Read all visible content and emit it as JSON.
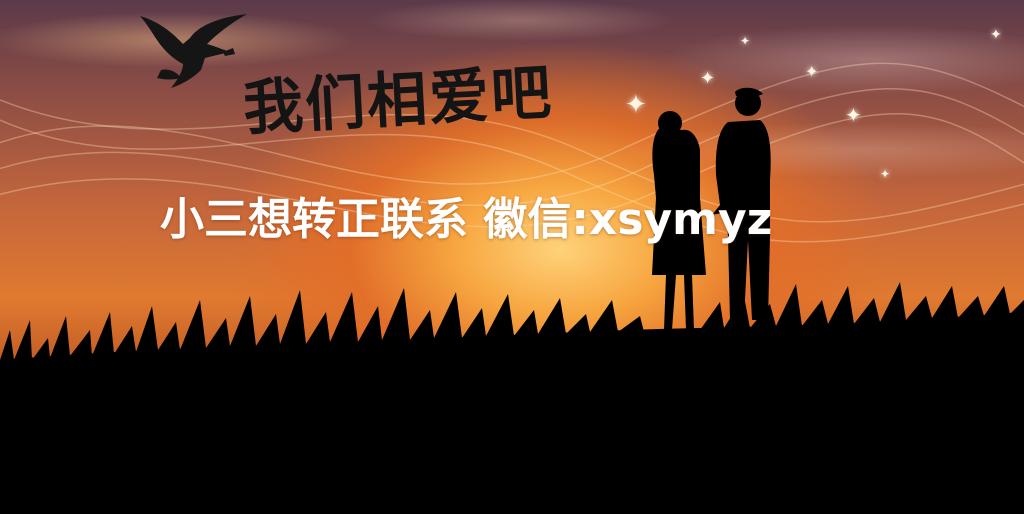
{
  "image": {
    "title_text": "我们相爱吧",
    "overlay_text": "小三想转正联系 徽信:xsymyz",
    "icons": [
      "eagle-icon",
      "sparkle-star-icon"
    ],
    "colors": {
      "sky_top": "#5b3a4a",
      "sky_glow": "#f7a640",
      "title_ink": "#141414",
      "overlay_text": "#ffffff",
      "silhouette": "#000000"
    }
  }
}
